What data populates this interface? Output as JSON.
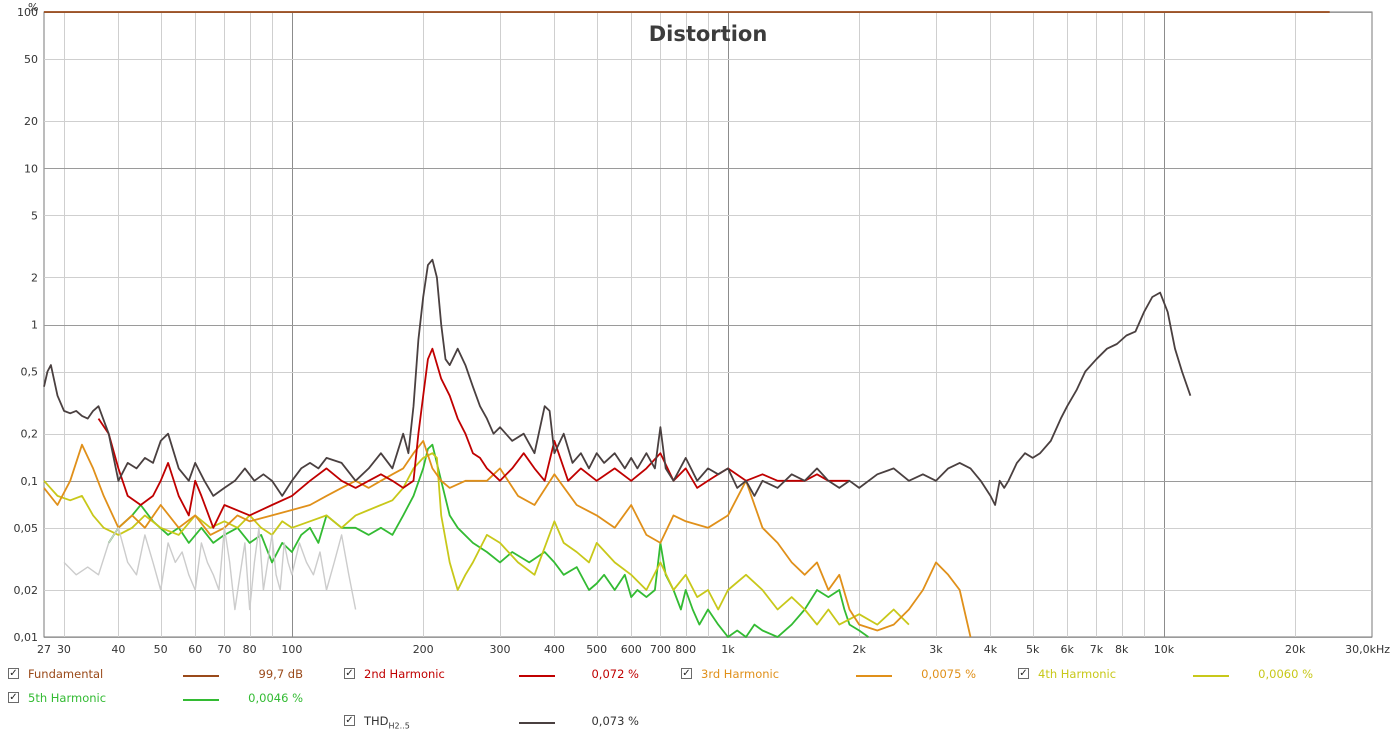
{
  "chart_data": {
    "type": "line",
    "title": "Distortion",
    "ylabel": "%",
    "xunit": "kHz",
    "xscale": "log",
    "yscale": "log",
    "xlim": [
      27,
      30000
    ],
    "ylim": [
      0.01,
      100
    ],
    "grid": true,
    "x_ticks": [
      {
        "v": 27,
        "t": "27"
      },
      {
        "v": 30,
        "t": "30"
      },
      {
        "v": 40,
        "t": "40"
      },
      {
        "v": 50,
        "t": "50"
      },
      {
        "v": 60,
        "t": "60"
      },
      {
        "v": 70,
        "t": "70"
      },
      {
        "v": 80,
        "t": "80"
      },
      {
        "v": 100,
        "t": "100"
      },
      {
        "v": 200,
        "t": "200"
      },
      {
        "v": 300,
        "t": "300"
      },
      {
        "v": 400,
        "t": "400"
      },
      {
        "v": 500,
        "t": "500"
      },
      {
        "v": 600,
        "t": "600"
      },
      {
        "v": 700,
        "t": "700"
      },
      {
        "v": 800,
        "t": "800"
      },
      {
        "v": 1000,
        "t": "1k"
      },
      {
        "v": 2000,
        "t": "2k"
      },
      {
        "v": 3000,
        "t": "3k"
      },
      {
        "v": 4000,
        "t": "4k"
      },
      {
        "v": 5000,
        "t": "5k"
      },
      {
        "v": 6000,
        "t": "6k"
      },
      {
        "v": 7000,
        "t": "7k"
      },
      {
        "v": 8000,
        "t": "8k"
      },
      {
        "v": 10000,
        "t": "10k"
      },
      {
        "v": 20000,
        "t": "20k"
      },
      {
        "v": 30000,
        "t": "30,0kHz"
      }
    ],
    "y_ticks": [
      {
        "v": 100,
        "t": "100"
      },
      {
        "v": 50,
        "t": "50"
      },
      {
        "v": 20,
        "t": "20"
      },
      {
        "v": 10,
        "t": "10"
      },
      {
        "v": 5,
        "t": "5"
      },
      {
        "v": 2,
        "t": "2"
      },
      {
        "v": 1,
        "t": "1"
      },
      {
        "v": 0.5,
        "t": "0,5"
      },
      {
        "v": 0.2,
        "t": "0,2"
      },
      {
        "v": 0.1,
        "t": "0,1"
      },
      {
        "v": 0.05,
        "t": "0,05"
      },
      {
        "v": 0.02,
        "t": "0,02"
      },
      {
        "v": 0.01,
        "t": "0,01"
      }
    ],
    "series": [
      {
        "name": "Fundamental",
        "color": "#9a4a1a",
        "x": [
          27,
          24000
        ],
        "y": [
          100,
          100
        ]
      },
      {
        "name": "5th Harmonic",
        "color": "#33bb33",
        "x": [
          38,
          40,
          43,
          45,
          48,
          52,
          55,
          58,
          62,
          66,
          70,
          75,
          80,
          85,
          90,
          95,
          100,
          105,
          110,
          115,
          120,
          130,
          140,
          150,
          160,
          170,
          180,
          190,
          200,
          205,
          210,
          220,
          230,
          240,
          260,
          280,
          300,
          320,
          350,
          380,
          400,
          420,
          450,
          480,
          500,
          520,
          550,
          580,
          600,
          620,
          650,
          680,
          700,
          720,
          750,
          780,
          800,
          830,
          860,
          900,
          950,
          1000,
          1050,
          1100,
          1150,
          1200,
          1300,
          1400,
          1500,
          1600,
          1700,
          1800,
          1850,
          1900,
          2000,
          2100
        ],
        "y": [
          0.04,
          0.05,
          0.06,
          0.07,
          0.055,
          0.045,
          0.05,
          0.04,
          0.05,
          0.04,
          0.045,
          0.05,
          0.04,
          0.045,
          0.03,
          0.04,
          0.035,
          0.045,
          0.05,
          0.04,
          0.06,
          0.05,
          0.05,
          0.045,
          0.05,
          0.045,
          0.06,
          0.08,
          0.12,
          0.16,
          0.17,
          0.1,
          0.06,
          0.05,
          0.04,
          0.035,
          0.03,
          0.035,
          0.03,
          0.035,
          0.03,
          0.025,
          0.028,
          0.02,
          0.022,
          0.025,
          0.02,
          0.025,
          0.018,
          0.02,
          0.018,
          0.02,
          0.04,
          0.025,
          0.02,
          0.015,
          0.02,
          0.015,
          0.012,
          0.015,
          0.012,
          0.01,
          0.011,
          0.01,
          0.012,
          0.011,
          0.01,
          0.012,
          0.015,
          0.02,
          0.018,
          0.02,
          0.015,
          0.012,
          0.011,
          0.01
        ]
      },
      {
        "name": "4th Harmonic",
        "color": "#c8c81a",
        "x": [
          27,
          29,
          31,
          33,
          35,
          37,
          40,
          43,
          46,
          50,
          55,
          60,
          65,
          70,
          75,
          80,
          85,
          90,
          95,
          100,
          110,
          120,
          130,
          140,
          150,
          160,
          170,
          180,
          190,
          200,
          210,
          215,
          220,
          230,
          240,
          250,
          260,
          280,
          300,
          330,
          360,
          400,
          420,
          450,
          480,
          500,
          550,
          600,
          650,
          700,
          750,
          800,
          850,
          900,
          950,
          1000,
          1100,
          1200,
          1300,
          1400,
          1500,
          1600,
          1700,
          1800,
          2000,
          2200,
          2400,
          2600
        ],
        "y": [
          0.1,
          0.08,
          0.075,
          0.08,
          0.06,
          0.05,
          0.045,
          0.05,
          0.06,
          0.05,
          0.045,
          0.06,
          0.05,
          0.055,
          0.05,
          0.06,
          0.05,
          0.045,
          0.055,
          0.05,
          0.055,
          0.06,
          0.05,
          0.06,
          0.065,
          0.07,
          0.075,
          0.09,
          0.12,
          0.14,
          0.15,
          0.14,
          0.06,
          0.03,
          0.02,
          0.025,
          0.03,
          0.045,
          0.04,
          0.03,
          0.025,
          0.055,
          0.04,
          0.035,
          0.03,
          0.04,
          0.03,
          0.025,
          0.02,
          0.03,
          0.02,
          0.025,
          0.018,
          0.02,
          0.015,
          0.02,
          0.025,
          0.02,
          0.015,
          0.018,
          0.015,
          0.012,
          0.015,
          0.012,
          0.014,
          0.012,
          0.015,
          0.012
        ]
      },
      {
        "name": "3rd Harmonic",
        "color": "#e0901a",
        "x": [
          27,
          29,
          31,
          33,
          35,
          37,
          40,
          43,
          46,
          50,
          55,
          60,
          65,
          70,
          75,
          80,
          90,
          100,
          110,
          120,
          130,
          140,
          150,
          160,
          170,
          180,
          190,
          200,
          210,
          220,
          230,
          250,
          280,
          300,
          330,
          360,
          400,
          450,
          500,
          550,
          600,
          650,
          700,
          750,
          800,
          900,
          1000,
          1100,
          1200,
          1300,
          1400,
          1500,
          1600,
          1700,
          1800,
          1900,
          2000,
          2200,
          2400,
          2600,
          2800,
          3000,
          3200,
          3400,
          3600
        ],
        "y": [
          0.09,
          0.07,
          0.1,
          0.17,
          0.12,
          0.08,
          0.05,
          0.06,
          0.05,
          0.07,
          0.05,
          0.06,
          0.045,
          0.05,
          0.06,
          0.055,
          0.06,
          0.065,
          0.07,
          0.08,
          0.09,
          0.1,
          0.09,
          0.1,
          0.11,
          0.12,
          0.15,
          0.18,
          0.12,
          0.1,
          0.09,
          0.1,
          0.1,
          0.12,
          0.08,
          0.07,
          0.11,
          0.07,
          0.06,
          0.05,
          0.07,
          0.045,
          0.04,
          0.06,
          0.055,
          0.05,
          0.06,
          0.1,
          0.05,
          0.04,
          0.03,
          0.025,
          0.03,
          0.02,
          0.025,
          0.015,
          0.012,
          0.011,
          0.012,
          0.015,
          0.02,
          0.03,
          0.025,
          0.02,
          0.01
        ]
      },
      {
        "name": "2nd Harmonic",
        "color": "#c00000",
        "x": [
          36,
          38,
          40,
          42,
          45,
          48,
          50,
          52,
          55,
          58,
          60,
          62,
          66,
          70,
          80,
          90,
          100,
          110,
          120,
          130,
          140,
          150,
          160,
          170,
          180,
          190,
          195,
          200,
          205,
          210,
          220,
          230,
          240,
          250,
          260,
          270,
          280,
          300,
          320,
          340,
          360,
          380,
          400,
          430,
          460,
          500,
          550,
          600,
          650,
          700,
          750,
          800,
          850,
          900,
          950,
          1000,
          1100,
          1200,
          1300,
          1400,
          1500,
          1600,
          1700,
          1800,
          1900
        ],
        "y": [
          0.25,
          0.2,
          0.12,
          0.08,
          0.07,
          0.08,
          0.1,
          0.13,
          0.08,
          0.06,
          0.1,
          0.08,
          0.05,
          0.07,
          0.06,
          0.07,
          0.08,
          0.1,
          0.12,
          0.1,
          0.09,
          0.1,
          0.11,
          0.1,
          0.09,
          0.1,
          0.2,
          0.35,
          0.6,
          0.7,
          0.45,
          0.35,
          0.25,
          0.2,
          0.15,
          0.14,
          0.12,
          0.1,
          0.12,
          0.15,
          0.12,
          0.1,
          0.18,
          0.1,
          0.12,
          0.1,
          0.12,
          0.1,
          0.12,
          0.15,
          0.1,
          0.12,
          0.09,
          0.1,
          0.11,
          0.12,
          0.1,
          0.11,
          0.1,
          0.1,
          0.1,
          0.11,
          0.1,
          0.1,
          0.1
        ]
      },
      {
        "name": "THD",
        "color": "#4a4040",
        "x": [
          27,
          27.5,
          28,
          29,
          30,
          31,
          32,
          33,
          34,
          35,
          36,
          38,
          40,
          42,
          44,
          46,
          48,
          50,
          52,
          55,
          58,
          60,
          63,
          66,
          70,
          74,
          78,
          82,
          86,
          90,
          95,
          100,
          105,
          110,
          115,
          120,
          130,
          140,
          150,
          160,
          170,
          180,
          185,
          190,
          195,
          200,
          205,
          210,
          215,
          220,
          225,
          230,
          240,
          250,
          260,
          270,
          280,
          290,
          300,
          320,
          340,
          360,
          380,
          390,
          400,
          420,
          440,
          460,
          480,
          500,
          520,
          550,
          580,
          600,
          620,
          650,
          680,
          700,
          720,
          750,
          800,
          850,
          900,
          950,
          1000,
          1050,
          1100,
          1150,
          1200,
          1300,
          1400,
          1500,
          1600,
          1700,
          1800,
          1900,
          2000,
          2200,
          2400,
          2600,
          2800,
          3000,
          3200,
          3400,
          3600,
          3800,
          4000,
          4100,
          4200,
          4300,
          4400,
          4600,
          4800,
          5000,
          5200,
          5500,
          5800,
          6000,
          6300,
          6600,
          7000,
          7400,
          7800,
          8200,
          8600,
          9000,
          9400,
          9800,
          10200,
          10600,
          11000,
          11500
        ],
        "y": [
          0.4,
          0.5,
          0.55,
          0.35,
          0.28,
          0.27,
          0.28,
          0.26,
          0.25,
          0.28,
          0.3,
          0.2,
          0.1,
          0.13,
          0.12,
          0.14,
          0.13,
          0.18,
          0.2,
          0.12,
          0.1,
          0.13,
          0.1,
          0.08,
          0.09,
          0.1,
          0.12,
          0.1,
          0.11,
          0.1,
          0.08,
          0.1,
          0.12,
          0.13,
          0.12,
          0.14,
          0.13,
          0.1,
          0.12,
          0.15,
          0.12,
          0.2,
          0.15,
          0.3,
          0.8,
          1.5,
          2.4,
          2.6,
          2.0,
          1.0,
          0.6,
          0.55,
          0.7,
          0.55,
          0.4,
          0.3,
          0.25,
          0.2,
          0.22,
          0.18,
          0.2,
          0.15,
          0.3,
          0.28,
          0.15,
          0.2,
          0.13,
          0.15,
          0.12,
          0.15,
          0.13,
          0.15,
          0.12,
          0.14,
          0.12,
          0.15,
          0.12,
          0.22,
          0.12,
          0.1,
          0.14,
          0.1,
          0.12,
          0.11,
          0.12,
          0.09,
          0.1,
          0.08,
          0.1,
          0.09,
          0.11,
          0.1,
          0.12,
          0.1,
          0.09,
          0.1,
          0.09,
          0.11,
          0.12,
          0.1,
          0.11,
          0.1,
          0.12,
          0.13,
          0.12,
          0.1,
          0.08,
          0.07,
          0.1,
          0.09,
          0.1,
          0.13,
          0.15,
          0.14,
          0.15,
          0.18,
          0.25,
          0.3,
          0.38,
          0.5,
          0.6,
          0.7,
          0.75,
          0.85,
          0.9,
          1.2,
          1.5,
          1.6,
          1.2,
          0.7,
          0.5,
          0.35
        ]
      },
      {
        "name": "THD-overlay",
        "color": "#cccccc",
        "x": [
          30,
          32,
          34,
          36,
          38,
          40,
          42,
          44,
          46,
          48,
          50,
          52,
          54,
          56,
          58,
          60,
          62,
          64,
          66,
          68,
          70,
          72,
          74,
          76,
          78,
          80,
          82,
          84,
          86,
          88,
          90,
          92,
          94,
          96,
          98,
          100,
          104,
          108,
          112,
          116,
          120,
          125,
          130,
          135,
          140
        ],
        "y": [
          0.03,
          0.025,
          0.028,
          0.025,
          0.04,
          0.05,
          0.03,
          0.025,
          0.045,
          0.03,
          0.02,
          0.04,
          0.03,
          0.035,
          0.025,
          0.02,
          0.04,
          0.03,
          0.025,
          0.02,
          0.05,
          0.03,
          0.015,
          0.025,
          0.04,
          0.015,
          0.03,
          0.05,
          0.02,
          0.03,
          0.045,
          0.025,
          0.02,
          0.04,
          0.03,
          0.025,
          0.04,
          0.03,
          0.025,
          0.035,
          0.02,
          0.03,
          0.045,
          0.025,
          0.015
        ]
      }
    ]
  },
  "legend": {
    "fundamental": {
      "label": "Fundamental",
      "value": "99,7 dB",
      "checked": "✓"
    },
    "h2": {
      "label": "2nd Harmonic",
      "value": "0,072 %",
      "checked": "✓"
    },
    "h3": {
      "label": "3rd Harmonic",
      "value": "0,0075 %",
      "checked": "✓"
    },
    "h4": {
      "label": "4th Harmonic",
      "value": "0,0060 %",
      "checked": "✓"
    },
    "h5": {
      "label": "5th Harmonic",
      "value": "0,0046 %",
      "checked": "✓"
    },
    "thd": {
      "label": "THD",
      "sub": "H2..5",
      "value": "0,073 %",
      "checked": "✓"
    }
  }
}
